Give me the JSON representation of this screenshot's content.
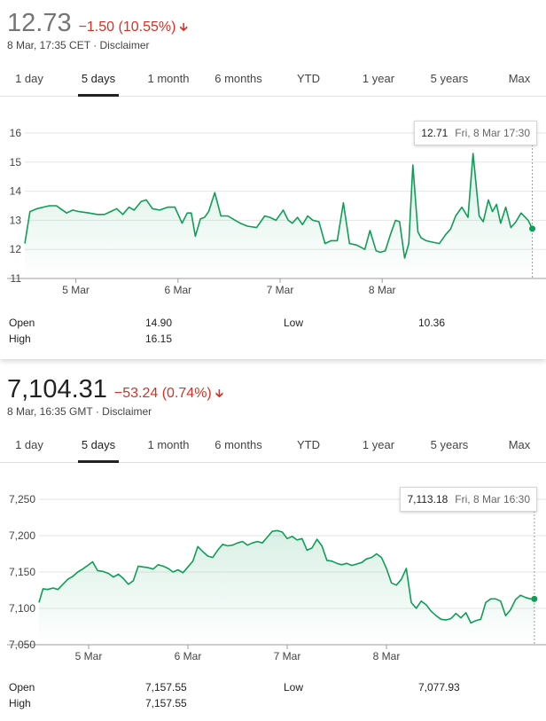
{
  "tabs": [
    "1 day",
    "5 days",
    "1 month",
    "6 months",
    "YTD",
    "1 year",
    "5 years",
    "Max"
  ],
  "active_tab": "5 days",
  "accent_color": "#0f9d58",
  "negative_color": "#d93025",
  "panels": [
    {
      "price": "12.73",
      "change": "−1.50 (10.55%)",
      "arrow": "down-arrow-icon",
      "timestamp": "8 Mar, 17:35 CET · Disclaimer",
      "tooltip_value": "12.71",
      "tooltip_time": "Fri, 8 Mar 17:30",
      "stats": {
        "open_label": "Open",
        "open_value": "14.90",
        "high_label": "High",
        "high_value": "16.15",
        "low_label": "Low",
        "low_value": "10.36"
      }
    },
    {
      "price": "7,104.31",
      "change": "−53.24 (0.74%)",
      "arrow": "down-arrow-icon",
      "timestamp": "8 Mar, 16:35 GMT · Disclaimer",
      "tooltip_value": "7,113.18",
      "tooltip_time": "Fri, 8 Mar 16:30",
      "stats": {
        "open_label": "Open",
        "open_value": "7,157.55",
        "high_label": "High",
        "high_value": "7,157.55",
        "low_label": "Low",
        "low_value": "7,077.93"
      }
    }
  ],
  "chart_data": [
    {
      "type": "line",
      "title": "",
      "xlabel": "",
      "ylabel": "",
      "ylim": [
        11,
        16
      ],
      "yticks": [
        11,
        12,
        13,
        14,
        15,
        16
      ],
      "ytick_labels": [
        "11",
        "12",
        "13",
        "14",
        "15",
        "16"
      ],
      "xlim": [
        4.0,
        9.0
      ],
      "xticks": [
        4.5,
        5.5,
        6.5,
        7.5
      ],
      "xtick_labels": [
        "5 Mar",
        "6 Mar",
        "7 Mar",
        "8 Mar"
      ],
      "grid": true,
      "legend": "none",
      "series": [
        {
          "x": [
            4.0,
            4.05,
            4.12,
            4.18,
            4.24,
            4.31,
            4.35,
            4.41,
            4.47,
            4.53,
            4.63,
            4.71,
            4.78,
            4.84,
            4.9,
            4.96,
            5.02,
            5.07,
            5.14,
            5.19,
            5.25,
            5.32,
            5.4,
            5.47,
            5.54,
            5.59,
            5.63,
            5.67,
            5.72,
            5.76,
            5.8,
            5.86,
            5.92,
            5.99,
            6.06,
            6.11,
            6.18,
            6.27,
            6.35,
            6.4,
            6.46,
            6.53,
            6.58,
            6.62,
            6.67,
            6.72,
            6.77,
            6.82,
            6.88,
            6.94,
            7.0,
            7.06,
            7.12,
            7.18,
            7.25,
            7.33,
            7.38,
            7.44,
            7.48,
            7.53,
            7.58,
            7.63,
            7.67,
            7.72,
            7.76,
            7.8,
            7.85,
            7.88,
            7.93,
            7.99,
            8.06,
            8.12,
            8.17,
            8.22,
            8.28,
            8.34,
            8.39,
            8.45,
            8.49,
            8.54,
            8.58,
            8.62,
            8.66,
            8.71,
            8.76,
            8.81,
            8.86,
            8.93,
            8.97
          ],
          "y": [
            12.2,
            13.3,
            13.4,
            13.45,
            13.5,
            13.5,
            13.4,
            13.25,
            13.35,
            13.3,
            13.25,
            13.2,
            13.2,
            13.3,
            13.4,
            13.2,
            13.45,
            13.35,
            13.65,
            13.7,
            13.4,
            13.35,
            13.45,
            13.45,
            12.9,
            13.25,
            13.25,
            12.45,
            13.05,
            13.1,
            13.3,
            13.95,
            13.15,
            13.15,
            13.0,
            12.9,
            12.8,
            12.75,
            13.15,
            13.1,
            13.0,
            13.35,
            13.0,
            12.9,
            13.1,
            12.85,
            13.15,
            13.0,
            12.95,
            12.2,
            12.3,
            12.3,
            13.6,
            12.2,
            12.15,
            12.0,
            12.65,
            11.95,
            11.9,
            11.95,
            12.5,
            13.0,
            12.95,
            11.7,
            12.2,
            14.9,
            12.6,
            12.4,
            12.3,
            12.25,
            12.2,
            12.5,
            12.7,
            13.15,
            13.45,
            13.1,
            15.3,
            13.15,
            12.95,
            13.7,
            13.3,
            13.55,
            12.9,
            13.45,
            12.75,
            12.95,
            13.25,
            13.0,
            12.71
          ]
        }
      ]
    },
    {
      "type": "line",
      "title": "",
      "xlabel": "",
      "ylabel": "",
      "ylim": [
        7050,
        7250
      ],
      "yticks": [
        7050,
        7100,
        7150,
        7200,
        7250
      ],
      "ytick_labels": [
        "7,050",
        "7,100",
        "7,150",
        "7,200",
        "7,250"
      ],
      "xlim": [
        4.0,
        9.0
      ],
      "xticks": [
        4.5,
        5.5,
        6.5,
        7.5
      ],
      "xtick_labels": [
        "5 Mar",
        "6 Mar",
        "7 Mar",
        "8 Mar"
      ],
      "grid": true,
      "legend": "none",
      "series": [
        {
          "x": [
            4.0,
            4.04,
            4.09,
            4.14,
            4.19,
            4.24,
            4.29,
            4.34,
            4.39,
            4.44,
            4.49,
            4.54,
            4.59,
            4.64,
            4.7,
            4.75,
            4.8,
            4.85,
            4.9,
            4.95,
            5.0,
            5.05,
            5.1,
            5.15,
            5.2,
            5.25,
            5.3,
            5.35,
            5.4,
            5.45,
            5.5,
            5.55,
            5.6,
            5.65,
            5.7,
            5.75,
            5.8,
            5.85,
            5.9,
            5.95,
            6.0,
            6.05,
            6.1,
            6.15,
            6.2,
            6.25,
            6.3,
            6.35,
            6.4,
            6.45,
            6.5,
            6.55,
            6.6,
            6.65,
            6.7,
            6.75,
            6.8,
            6.85,
            6.9,
            6.95,
            7.0,
            7.05,
            7.1,
            7.15,
            7.2,
            7.25,
            7.3,
            7.35,
            7.4,
            7.45,
            7.5,
            7.55,
            7.6,
            7.65,
            7.7,
            7.75,
            7.8,
            7.85,
            7.9,
            7.95,
            8.0,
            8.05,
            8.1,
            8.15,
            8.2,
            8.25,
            8.3,
            8.35,
            8.4,
            8.45,
            8.5,
            8.55,
            8.6,
            8.65,
            8.7,
            8.75,
            8.8,
            8.85,
            8.9,
            8.95,
            8.99
          ],
          "y": [
            7108,
            7127,
            7126,
            7128,
            7126,
            7133,
            7140,
            7144,
            7150,
            7154,
            7159,
            7164,
            7152,
            7151,
            7148,
            7143,
            7147,
            7141,
            7133,
            7138,
            7158,
            7157,
            7156,
            7154,
            7160,
            7158,
            7155,
            7150,
            7153,
            7149,
            7157,
            7165,
            7185,
            7178,
            7172,
            7170,
            7180,
            7188,
            7186,
            7187,
            7190,
            7192,
            7187,
            7190,
            7192,
            7190,
            7198,
            7206,
            7207,
            7205,
            7196,
            7199,
            7194,
            7196,
            7180,
            7183,
            7195,
            7186,
            7166,
            7165,
            7162,
            7160,
            7162,
            7159,
            7161,
            7163,
            7168,
            7170,
            7175,
            7170,
            7155,
            7135,
            7132,
            7140,
            7155,
            7108,
            7100,
            7110,
            7105,
            7096,
            7090,
            7085,
            7084,
            7086,
            7093,
            7087,
            7094,
            7080,
            7083,
            7085,
            7108,
            7113,
            7113,
            7110,
            7090,
            7098,
            7112,
            7118,
            7115,
            7113,
            7113
          ]
        }
      ]
    }
  ]
}
